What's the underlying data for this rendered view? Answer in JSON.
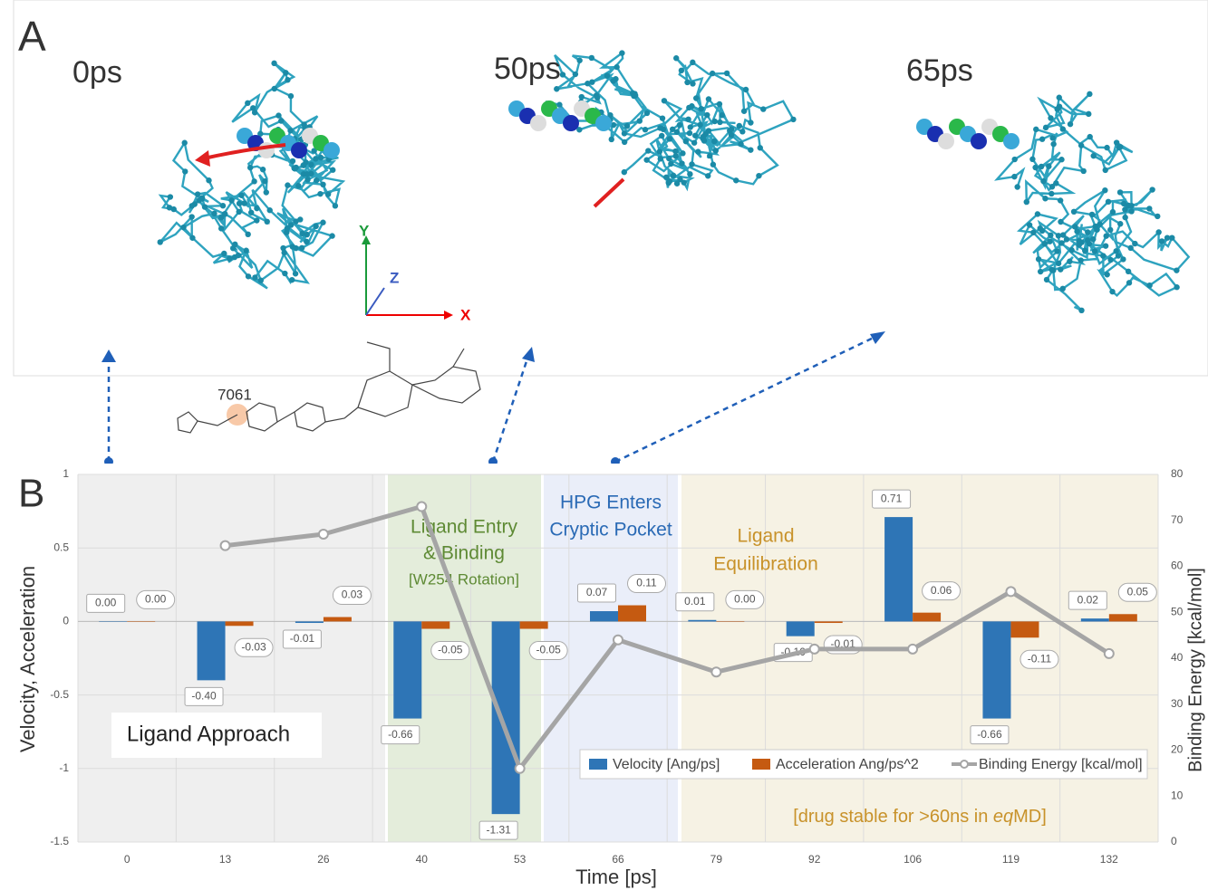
{
  "panel_a": {
    "label": "A",
    "frames": [
      "0ps",
      "50ps",
      "65ps"
    ],
    "residue": "7061",
    "axes": [
      "X",
      "Y",
      "Z"
    ]
  },
  "chart_data": {
    "type": "bar",
    "panel_label": "B",
    "xlabel": "Time [ps]",
    "ylabel": "Velocity, Acceleration",
    "y2label": "Binding Energy [kcal/mol]",
    "categories": [
      0,
      13,
      26,
      40,
      53,
      66,
      79,
      92,
      106,
      119,
      132
    ],
    "series": [
      {
        "name": "Velocity [Ang/ps]",
        "color": "#2e75b6",
        "type": "bar",
        "values": [
          0,
          -0.4,
          -0.01,
          -0.66,
          -1.31,
          0.07,
          0.01,
          -0.1,
          0.71,
          -0.66,
          0.02
        ],
        "value_labels": [
          "0.00",
          "-0.40",
          "-0.01",
          "-0.66",
          "-1.31",
          "0.07",
          "0.01",
          "-0.10",
          "0.71",
          "-0.66",
          "0.02"
        ]
      },
      {
        "name": "Acceleration Ang/ps^2",
        "color": "#c55a11",
        "type": "bar",
        "values": [
          0,
          -0.03,
          0.03,
          -0.05,
          -0.05,
          0.11,
          0,
          -0.01,
          0.06,
          -0.11,
          0.05
        ],
        "value_labels": [
          "0.00",
          "-0.03",
          "0.03",
          "-0.05",
          "-0.05",
          "0.11",
          "0.00",
          "-0.01",
          "0.06",
          "-0.11",
          "0.05"
        ]
      },
      {
        "name": "Binding Energy [kcal/mol]",
        "color": "#a5a5a5",
        "type": "line",
        "axis": "y2",
        "values": [
          null,
          64.5,
          67,
          73,
          16,
          44,
          37,
          42,
          42,
          54.5,
          41
        ]
      }
    ],
    "ylim": [
      -1.5,
      1
    ],
    "yticks": [
      -1.5,
      -1,
      -0.5,
      0,
      0.5,
      1
    ],
    "y2lim": [
      0,
      80
    ],
    "y2ticks": [
      0,
      10,
      20,
      30,
      40,
      50,
      60,
      70,
      80
    ],
    "grid": true,
    "legend": "lower right",
    "annotations": [
      "Ligand Approach",
      "Ligand Entry",
      "& Binding",
      "[W254 Rotation]",
      "HPG Enters",
      "Cryptic Pocket",
      "Ligand",
      "Equilibration"
    ],
    "note": [
      "[drug stable for >60ns in ",
      "eq",
      "MD]"
    ]
  }
}
